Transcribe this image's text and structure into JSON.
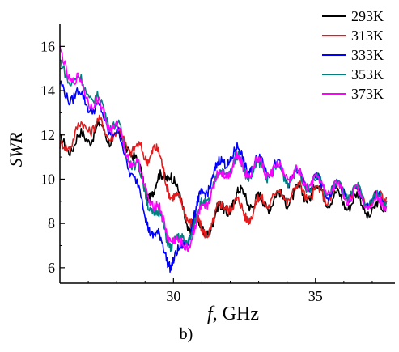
{
  "chart_data": {
    "type": "line",
    "title": "",
    "xlabel_italic": "f",
    "xlabel_rest": ", GHz",
    "ylabel": "SWR",
    "xlim": [
      26,
      37.8
    ],
    "ylim": [
      5.3,
      17.0
    ],
    "x_ticks": [
      30,
      35
    ],
    "y_ticks": [
      6,
      8,
      10,
      12,
      14,
      16
    ],
    "legend_position": "top-right",
    "series": [
      {
        "name": "293K",
        "color": "#000000",
        "x": [
          26.0,
          26.5,
          27.0,
          27.5,
          28.0,
          28.5,
          29.0,
          29.3,
          29.6,
          29.9,
          30.2,
          30.5,
          30.8,
          31.0,
          31.3,
          31.6,
          31.9,
          32.2,
          32.5,
          32.8,
          33.1,
          33.5,
          34.0,
          34.5,
          35.0,
          35.5,
          36.0,
          36.5,
          37.0,
          37.5
        ],
        "y": [
          11.5,
          11.6,
          12.0,
          12.2,
          11.8,
          11.5,
          9.5,
          9.5,
          10.0,
          10.5,
          9.0,
          8.0,
          8.0,
          7.5,
          8.0,
          8.5,
          8.8,
          9.0,
          9.5,
          8.8,
          9.0,
          9.0,
          9.2,
          9.3,
          9.5,
          9.2,
          9.0,
          9.0,
          8.5,
          8.8
        ]
      },
      {
        "name": "313K",
        "color": "#e41a1c",
        "x": [
          26.0,
          26.5,
          27.0,
          27.5,
          28.0,
          28.5,
          29.0,
          29.3,
          29.6,
          29.9,
          30.2,
          30.5,
          30.8,
          31.0,
          31.3,
          31.6,
          31.9,
          32.2,
          32.5,
          32.8,
          33.1,
          33.5,
          34.0,
          34.5,
          35.0,
          35.5,
          36.0,
          36.5,
          37.0,
          37.5
        ],
        "y": [
          11.2,
          12.0,
          12.5,
          12.3,
          12.0,
          11.5,
          11.0,
          11.5,
          10.5,
          9.5,
          8.8,
          8.5,
          8.0,
          7.5,
          8.0,
          8.5,
          9.0,
          8.8,
          8.5,
          8.5,
          9.0,
          9.2,
          9.3,
          9.5,
          9.3,
          9.3,
          9.5,
          9.3,
          9.0,
          9.2
        ]
      },
      {
        "name": "333K",
        "color": "#0000ff",
        "x": [
          26.0,
          26.5,
          27.0,
          27.5,
          28.0,
          28.5,
          29.0,
          29.3,
          29.6,
          29.9,
          30.2,
          30.5,
          30.8,
          31.0,
          31.3,
          31.6,
          31.9,
          32.2,
          32.5,
          32.8,
          33.1,
          33.5,
          34.0,
          34.5,
          35.0,
          35.5,
          36.0,
          36.5,
          37.0,
          37.5
        ],
        "y": [
          14.0,
          13.8,
          13.5,
          12.8,
          12.0,
          10.5,
          8.5,
          7.5,
          7.0,
          6.3,
          6.5,
          7.5,
          8.5,
          9.2,
          10.0,
          10.5,
          11.0,
          11.2,
          10.8,
          10.5,
          10.8,
          10.5,
          10.2,
          10.0,
          9.8,
          9.5,
          9.5,
          9.2,
          9.0,
          9.0
        ]
      },
      {
        "name": "353K",
        "color": "#008080",
        "x": [
          26.0,
          26.5,
          27.0,
          27.5,
          28.0,
          28.5,
          29.0,
          29.3,
          29.6,
          29.9,
          30.2,
          30.5,
          30.8,
          31.0,
          31.3,
          31.6,
          31.9,
          32.2,
          32.5,
          32.8,
          33.1,
          33.5,
          34.0,
          34.5,
          35.0,
          35.5,
          36.0,
          36.5,
          37.0,
          37.5
        ],
        "y": [
          15.0,
          14.5,
          14.0,
          13.2,
          12.3,
          11.0,
          9.5,
          8.5,
          8.0,
          7.2,
          7.0,
          7.5,
          8.0,
          8.8,
          9.5,
          10.0,
          10.5,
          10.8,
          10.5,
          10.3,
          10.5,
          10.3,
          10.2,
          10.0,
          9.8,
          9.6,
          9.5,
          9.3,
          9.0,
          9.0
        ]
      },
      {
        "name": "373K",
        "color": "#ff00ff",
        "x": [
          26.0,
          26.5,
          27.0,
          27.5,
          28.0,
          28.5,
          29.0,
          29.3,
          29.6,
          29.9,
          30.2,
          30.5,
          30.8,
          31.0,
          31.3,
          31.6,
          31.9,
          32.2,
          32.5,
          32.8,
          33.1,
          33.5,
          34.0,
          34.5,
          35.0,
          35.5,
          36.0,
          36.5,
          37.0,
          37.5
        ],
        "y": [
          15.5,
          14.5,
          13.8,
          13.0,
          12.2,
          11.0,
          9.8,
          8.8,
          8.2,
          7.5,
          6.8,
          7.2,
          7.8,
          8.5,
          9.5,
          10.0,
          10.5,
          10.8,
          10.5,
          10.5,
          10.6,
          10.4,
          10.3,
          10.0,
          9.8,
          9.6,
          9.4,
          9.2,
          9.0,
          8.8
        ]
      }
    ]
  },
  "panel_label": "b)"
}
